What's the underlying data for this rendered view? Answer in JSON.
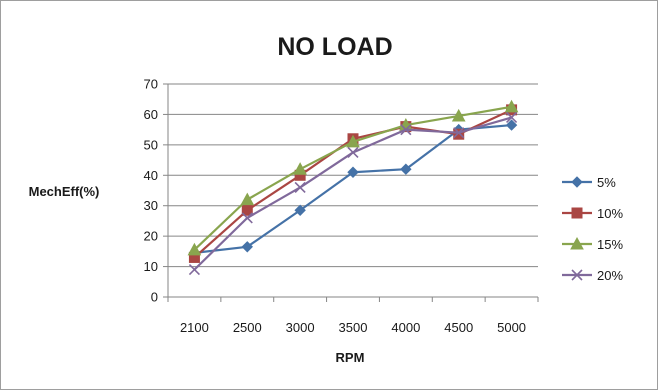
{
  "chart_data": {
    "type": "line",
    "title": "NO LOAD",
    "xlabel": "RPM",
    "ylabel": "MechEff(%)",
    "categories": [
      "2100",
      "2500",
      "3000",
      "3500",
      "4000",
      "4500",
      "5000"
    ],
    "ylim": [
      0,
      70
    ],
    "yticks": [
      0,
      10,
      20,
      30,
      40,
      50,
      60,
      70
    ],
    "grid": true,
    "legend_position": "right",
    "series": [
      {
        "name": "5%",
        "color": "#4572a7",
        "marker": "diamond",
        "values": [
          14.5,
          16.5,
          28.5,
          41,
          42,
          55,
          56.5
        ]
      },
      {
        "name": "10%",
        "color": "#aa4643",
        "marker": "square",
        "values": [
          13,
          28.5,
          40,
          52,
          56,
          53.5,
          61.5
        ]
      },
      {
        "name": "15%",
        "color": "#89a54e",
        "marker": "triangle",
        "values": [
          15.5,
          32,
          42,
          51,
          56.5,
          59.5,
          62.5
        ]
      },
      {
        "name": "20%",
        "color": "#80699b",
        "marker": "x",
        "values": [
          9,
          26,
          36,
          47.5,
          55,
          54,
          59
        ]
      }
    ]
  }
}
